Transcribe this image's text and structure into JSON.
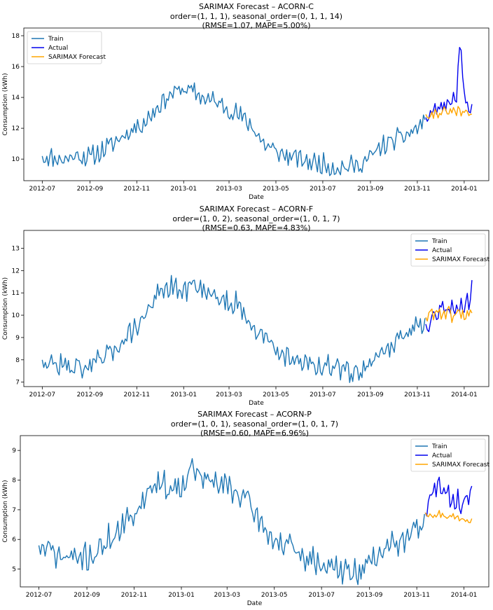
{
  "colors": {
    "train": "#1f77b4",
    "actual": "#0000ee",
    "forecast": "#ffa500"
  },
  "chart_data": [
    {
      "type": "line",
      "title": [
        "SARIMAX Forecast – ACORN-C",
        "order=(1, 1, 1), seasonal_order=(0, 1, 1, 14)",
        "(RMSE=1.07, MAPE=5.00%)"
      ],
      "xlabel": "Date",
      "ylabel": "Consumption (kWh)",
      "xlim": [
        "2012-06-07",
        "2014-02-02"
      ],
      "ylim": [
        8.6,
        18.5
      ],
      "xticks": [
        "2012-07",
        "2012-09",
        "2012-11",
        "2013-01",
        "2013-03",
        "2013-05",
        "2013-07",
        "2013-09",
        "2013-11",
        "2014-01"
      ],
      "yticks": [
        10,
        12,
        14,
        16,
        18
      ],
      "legend_position": "top-left",
      "legend": [
        "Train",
        "Actual",
        "SARIMAX Forecast"
      ],
      "series": [
        {
          "name": "Train",
          "color": "#1f77b4",
          "points": [
            [
              "2012-07-01",
              10.2
            ],
            [
              "2012-07-15",
              10.1
            ],
            [
              "2012-08-01",
              10.0
            ],
            [
              "2012-08-15",
              10.3
            ],
            [
              "2012-09-01",
              10.1
            ],
            [
              "2012-09-15",
              10.5
            ],
            [
              "2012-10-01",
              11.0
            ],
            [
              "2012-10-15",
              11.6
            ],
            [
              "2012-11-01",
              12.1
            ],
            [
              "2012-11-15",
              12.6
            ],
            [
              "2012-12-01",
              13.6
            ],
            [
              "2012-12-15",
              14.2
            ],
            [
              "2013-01-01",
              14.6
            ],
            [
              "2013-01-15",
              14.3
            ],
            [
              "2013-02-01",
              13.9
            ],
            [
              "2013-02-15",
              13.6
            ],
            [
              "2013-03-01",
              13.3
            ],
            [
              "2013-03-15",
              12.8
            ],
            [
              "2013-04-01",
              12.1
            ],
            [
              "2013-04-15",
              11.0
            ],
            [
              "2013-05-01",
              10.5
            ],
            [
              "2013-05-15",
              10.2
            ],
            [
              "2013-06-01",
              10.0
            ],
            [
              "2013-06-15",
              9.8
            ],
            [
              "2013-07-01",
              9.7
            ],
            [
              "2013-07-15",
              9.5
            ],
            [
              "2013-08-01",
              9.5
            ],
            [
              "2013-08-15",
              9.6
            ],
            [
              "2013-09-01",
              10.1
            ],
            [
              "2013-09-15",
              10.8
            ],
            [
              "2013-10-01",
              11.2
            ],
            [
              "2013-10-15",
              11.5
            ],
            [
              "2013-11-01",
              12.0
            ],
            [
              "2013-11-12",
              12.6
            ]
          ],
          "noise": 0.55,
          "step": 2,
          "seed": 11
        },
        {
          "name": "Actual",
          "color": "#0000ee",
          "points": [
            [
              "2013-11-12",
              12.7
            ],
            [
              "2013-11-25",
              13.2
            ],
            [
              "2013-12-05",
              13.5
            ],
            [
              "2013-12-15",
              13.9
            ],
            [
              "2013-12-22",
              14.2
            ],
            [
              "2013-12-25",
              16.8
            ],
            [
              "2013-12-27",
              17.9
            ],
            [
              "2013-12-30",
              14.8
            ],
            [
              "2014-01-05",
              13.3
            ],
            [
              "2014-01-12",
              13.6
            ]
          ],
          "noise": 0.45,
          "step": 2,
          "seed": 23
        },
        {
          "name": "SARIMAX Forecast",
          "color": "#ffa500",
          "points": [
            [
              "2013-11-12",
              12.9
            ],
            [
              "2013-12-01",
              13.0
            ],
            [
              "2013-12-20",
              13.1
            ],
            [
              "2014-01-12",
              12.9
            ]
          ],
          "noise": 0.28,
          "step": 2,
          "seed": 31
        }
      ]
    },
    {
      "type": "line",
      "title": [
        "SARIMAX Forecast – ACORN-F",
        "order=(1, 0, 2), seasonal_order=(1, 0, 1, 7)",
        "(RMSE=0.63, MAPE=4.83%)"
      ],
      "xlabel": "Date",
      "ylabel": "Consumption (kWh)",
      "xlim": [
        "2012-06-07",
        "2014-02-02"
      ],
      "ylim": [
        6.8,
        13.8
      ],
      "xticks": [
        "2012-07",
        "2012-09",
        "2012-11",
        "2013-01",
        "2013-03",
        "2013-05",
        "2013-07",
        "2013-09",
        "2013-11",
        "2014-01"
      ],
      "yticks": [
        7,
        8,
        9,
        10,
        11,
        12,
        13
      ],
      "legend_position": "top-right",
      "legend": [
        "Train",
        "Actual",
        "SARIMAX Forecast"
      ],
      "series": [
        {
          "name": "Train",
          "color": "#1f77b4",
          "points": [
            [
              "2012-07-01",
              8.0
            ],
            [
              "2012-07-15",
              7.8
            ],
            [
              "2012-08-01",
              7.7
            ],
            [
              "2012-08-15",
              7.7
            ],
            [
              "2012-09-01",
              7.7
            ],
            [
              "2012-09-15",
              7.9
            ],
            [
              "2012-10-01",
              8.4
            ],
            [
              "2012-10-15",
              9.0
            ],
            [
              "2012-11-01",
              9.5
            ],
            [
              "2012-11-15",
              10.2
            ],
            [
              "2012-12-01",
              11.0
            ],
            [
              "2012-12-15",
              11.2
            ],
            [
              "2013-01-01",
              11.0
            ],
            [
              "2013-01-15",
              11.5
            ],
            [
              "2013-02-01",
              11.1
            ],
            [
              "2013-02-15",
              10.8
            ],
            [
              "2013-03-01",
              10.6
            ],
            [
              "2013-03-15",
              10.5
            ],
            [
              "2013-04-01",
              9.6
            ],
            [
              "2013-04-15",
              9.0
            ],
            [
              "2013-05-01",
              8.4
            ],
            [
              "2013-05-15",
              8.2
            ],
            [
              "2013-06-01",
              8.0
            ],
            [
              "2013-06-15",
              7.8
            ],
            [
              "2013-07-01",
              7.7
            ],
            [
              "2013-07-15",
              7.6
            ],
            [
              "2013-08-01",
              7.5
            ],
            [
              "2013-08-15",
              7.5
            ],
            [
              "2013-09-01",
              7.9
            ],
            [
              "2013-09-15",
              8.3
            ],
            [
              "2013-10-01",
              8.8
            ],
            [
              "2013-10-15",
              9.1
            ],
            [
              "2013-11-01",
              9.5
            ],
            [
              "2013-11-12",
              9.9
            ]
          ],
          "noise": 0.45,
          "step": 2,
          "seed": 47
        },
        {
          "name": "Actual",
          "color": "#0000ee",
          "points": [
            [
              "2013-11-12",
              9.6
            ],
            [
              "2013-11-25",
              10.2
            ],
            [
              "2013-12-10",
              10.5
            ],
            [
              "2013-12-25",
              10.4
            ],
            [
              "2014-01-08",
              10.6
            ],
            [
              "2014-01-12",
              11.9
            ]
          ],
          "noise": 0.5,
          "step": 2,
          "seed": 53
        },
        {
          "name": "SARIMAX Forecast",
          "color": "#ffa500",
          "points": [
            [
              "2013-11-12",
              9.9
            ],
            [
              "2013-11-25",
              10.2
            ],
            [
              "2013-12-15",
              10.0
            ],
            [
              "2014-01-12",
              10.1
            ]
          ],
          "noise": 0.3,
          "step": 2,
          "seed": 61
        }
      ]
    },
    {
      "type": "line",
      "title": [
        "SARIMAX Forecast – ACORN-P",
        "order=(1, 0, 1), seasonal_order=(1, 0, 1, 7)",
        "(RMSE=0.60, MAPE=6.96%)"
      ],
      "xlabel": "Date",
      "ylabel": "Consumption (kWh)",
      "xlim": [
        "2012-06-07",
        "2014-02-02"
      ],
      "ylim": [
        4.4,
        9.5
      ],
      "xticks": [
        "2012-07",
        "2012-09",
        "2012-11",
        "2013-01",
        "2013-03",
        "2013-05",
        "2013-07",
        "2013-09",
        "2013-11",
        "2014-01"
      ],
      "yticks": [
        5,
        6,
        7,
        8,
        9
      ],
      "legend_position": "top-right",
      "legend": [
        "Train",
        "Actual",
        "SARIMAX Forecast"
      ],
      "series": [
        {
          "name": "Train",
          "color": "#1f77b4",
          "points": [
            [
              "2012-07-01",
              5.8
            ],
            [
              "2012-07-15",
              5.6
            ],
            [
              "2012-08-01",
              5.4
            ],
            [
              "2012-08-15",
              5.4
            ],
            [
              "2012-09-01",
              5.4
            ],
            [
              "2012-09-15",
              5.6
            ],
            [
              "2012-10-01",
              6.1
            ],
            [
              "2012-10-15",
              6.3
            ],
            [
              "2012-11-01",
              6.9
            ],
            [
              "2012-11-15",
              7.5
            ],
            [
              "2012-12-01",
              8.0
            ],
            [
              "2012-12-15",
              7.7
            ],
            [
              "2013-01-01",
              7.9
            ],
            [
              "2013-01-15",
              8.4
            ],
            [
              "2013-02-01",
              8.0
            ],
            [
              "2013-02-15",
              7.9
            ],
            [
              "2013-03-01",
              7.8
            ],
            [
              "2013-03-15",
              7.6
            ],
            [
              "2013-04-01",
              7.1
            ],
            [
              "2013-04-15",
              6.5
            ],
            [
              "2013-05-01",
              6.0
            ],
            [
              "2013-05-15",
              5.8
            ],
            [
              "2013-06-01",
              5.5
            ],
            [
              "2013-06-15",
              5.3
            ],
            [
              "2013-07-01",
              5.2
            ],
            [
              "2013-07-15",
              5.0
            ],
            [
              "2013-08-01",
              4.9
            ],
            [
              "2013-08-15",
              4.9
            ],
            [
              "2013-09-01",
              5.2
            ],
            [
              "2013-09-15",
              5.6
            ],
            [
              "2013-10-01",
              5.8
            ],
            [
              "2013-10-15",
              6.0
            ],
            [
              "2013-11-01",
              6.4
            ],
            [
              "2013-11-12",
              6.9
            ]
          ],
          "noise": 0.4,
          "step": 2,
          "seed": 71
        },
        {
          "name": "Actual",
          "color": "#0000ee",
          "points": [
            [
              "2013-11-12",
              6.9
            ],
            [
              "2013-11-20",
              7.4
            ],
            [
              "2013-11-28",
              7.9
            ],
            [
              "2013-12-10",
              7.4
            ],
            [
              "2013-12-25",
              7.3
            ],
            [
              "2014-01-05",
              7.2
            ],
            [
              "2014-01-12",
              7.9
            ]
          ],
          "noise": 0.35,
          "step": 2,
          "seed": 83
        },
        {
          "name": "SARIMAX Forecast",
          "color": "#ffa500",
          "points": [
            [
              "2013-11-12",
              6.9
            ],
            [
              "2013-12-01",
              6.85
            ],
            [
              "2013-12-20",
              6.75
            ],
            [
              "2014-01-12",
              6.7
            ]
          ],
          "noise": 0.12,
          "step": 2,
          "seed": 97
        }
      ]
    }
  ]
}
